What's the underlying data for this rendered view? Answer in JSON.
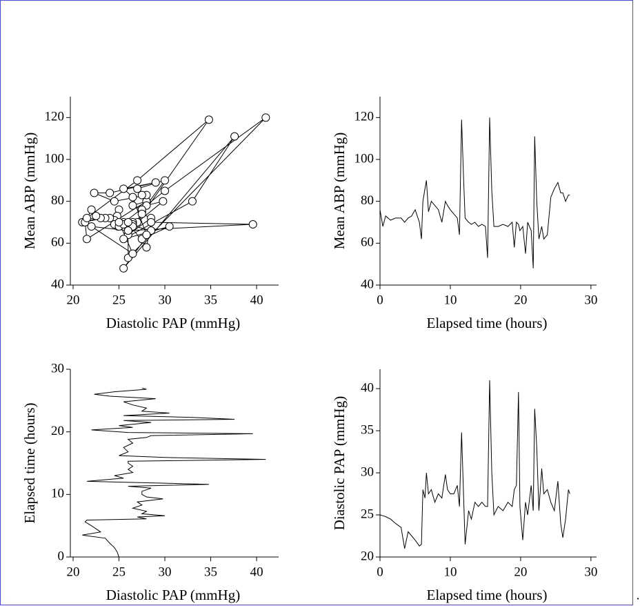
{
  "chart_data": [
    {
      "type": "scatter",
      "connect": true,
      "color": "#000000",
      "marker_fill": "#ffffff",
      "x_label": "Diastolic PAP (mmHg)",
      "y_label": "Mean ABP (mmHg)",
      "xlim": [
        19.7,
        42.4
      ],
      "xticks": [
        20,
        25,
        30,
        35,
        40
      ],
      "ylim": [
        40,
        130
      ],
      "yticks": [
        40,
        60,
        80,
        100,
        120
      ],
      "x": [
        25.0,
        24.9,
        24.8,
        24.5,
        24.0,
        23.5,
        21.0,
        23.0,
        22.5,
        22.0,
        21.3,
        21.5,
        28.0,
        27.0,
        30.0,
        27.5,
        28.0,
        26.5,
        27.5,
        27.0,
        29.8,
        28.0,
        27.5,
        27.5,
        28.5,
        26.0,
        34.8,
        27.0,
        21.5,
        25.5,
        24.5,
        26.5,
        26.0,
        26.5,
        26.0,
        26.0,
        41.0,
        30.0,
        25.0,
        26.0,
        25.5,
        26.5,
        26.0,
        28.0,
        28.5,
        39.6,
        26.0,
        22.0,
        26.5,
        25.0,
        28.5,
        25.5,
        37.6,
        33.0,
        25.5,
        30.5,
        27.5,
        28.0,
        26.5,
        25.5,
        29.0,
        24.0,
        22.3,
        24.5,
        28.0,
        27.5
      ],
      "values": [
        76,
        68,
        73,
        71,
        72,
        72,
        70,
        72,
        73,
        76,
        70,
        62,
        80,
        86,
        90,
        75,
        80,
        78,
        76,
        70,
        80,
        78,
        76,
        74,
        72,
        64,
        119,
        90,
        72,
        70,
        69,
        70,
        68,
        69,
        68,
        53,
        120,
        85,
        68,
        68,
        69,
        68,
        70,
        58,
        70,
        69,
        66,
        68,
        55,
        70,
        66,
        48,
        111,
        80,
        62,
        68,
        62,
        64,
        82,
        86,
        89,
        84,
        84,
        80,
        83,
        83
      ]
    },
    {
      "type": "line",
      "color": "#000000",
      "x_label": "Elapsed time (hours)",
      "y_label": "Mean ABP (mmHg)",
      "xlim": [
        0,
        30.8
      ],
      "xticks": [
        0,
        10,
        20,
        30
      ],
      "ylim": [
        40,
        130
      ],
      "yticks": [
        40,
        60,
        80,
        100,
        120
      ],
      "x": [
        0.0,
        0.4,
        0.8,
        1.5,
        2.2,
        3.0,
        3.5,
        4.0,
        4.5,
        5.0,
        5.6,
        5.9,
        6.1,
        6.4,
        6.6,
        6.9,
        7.3,
        7.8,
        8.3,
        8.8,
        9.3,
        9.6,
        10.0,
        10.5,
        11.0,
        11.3,
        11.6,
        11.9,
        12.1,
        12.6,
        13.0,
        13.5,
        14.0,
        14.5,
        15.0,
        15.3,
        15.6,
        15.9,
        16.2,
        16.8,
        17.5,
        18.2,
        18.8,
        19.1,
        19.4,
        19.7,
        19.9,
        20.3,
        20.7,
        21.0,
        21.5,
        21.8,
        22.0,
        22.3,
        22.6,
        23.0,
        23.3,
        23.8,
        24.3,
        24.8,
        25.3,
        25.7,
        26.0,
        26.4,
        26.8,
        27.0
      ],
      "values": [
        76,
        68,
        73,
        71,
        72,
        72,
        70,
        72,
        73,
        76,
        70,
        62,
        80,
        86,
        90,
        75,
        80,
        78,
        76,
        70,
        80,
        78,
        76,
        74,
        72,
        64,
        119,
        90,
        72,
        70,
        69,
        70,
        68,
        69,
        68,
        53,
        120,
        85,
        68,
        68,
        69,
        68,
        70,
        58,
        70,
        69,
        66,
        68,
        55,
        70,
        66,
        48,
        111,
        80,
        62,
        68,
        62,
        64,
        82,
        86,
        89,
        84,
        84,
        80,
        83,
        83
      ]
    },
    {
      "type": "line",
      "color": "#000000",
      "x_label": "Diastolic PAP (mmHg)",
      "y_label": "Elapsed time (hours)",
      "xlim": [
        19.7,
        42.4
      ],
      "xticks": [
        20,
        25,
        30,
        35,
        40
      ],
      "ylim": [
        0,
        30
      ],
      "yticks": [
        0,
        10,
        20,
        30
      ],
      "x": [
        25.0,
        24.9,
        24.8,
        24.5,
        24.0,
        23.5,
        21.0,
        23.0,
        22.5,
        22.0,
        21.3,
        21.5,
        28.0,
        27.0,
        30.0,
        27.5,
        28.0,
        26.5,
        27.5,
        27.0,
        29.8,
        28.0,
        27.5,
        27.5,
        28.5,
        26.0,
        34.8,
        27.0,
        21.5,
        25.5,
        24.5,
        26.5,
        26.0,
        26.5,
        26.0,
        26.0,
        41.0,
        30.0,
        25.0,
        26.0,
        25.5,
        26.5,
        26.0,
        28.0,
        28.5,
        39.6,
        26.0,
        22.0,
        26.5,
        25.0,
        28.5,
        25.5,
        37.6,
        33.0,
        25.5,
        30.5,
        27.5,
        28.0,
        26.5,
        25.5,
        29.0,
        24.0,
        22.3,
        24.5,
        28.0,
        27.5
      ],
      "values": [
        0.0,
        0.4,
        0.8,
        1.5,
        2.2,
        3.0,
        3.5,
        4.0,
        4.5,
        5.0,
        5.6,
        5.9,
        6.1,
        6.4,
        6.6,
        6.9,
        7.3,
        7.8,
        8.3,
        8.8,
        9.3,
        9.6,
        10.0,
        10.5,
        11.0,
        11.3,
        11.6,
        11.9,
        12.1,
        12.6,
        13.0,
        13.5,
        14.0,
        14.5,
        15.0,
        15.3,
        15.6,
        15.9,
        16.2,
        16.8,
        17.5,
        18.2,
        18.8,
        19.1,
        19.4,
        19.7,
        19.9,
        20.3,
        20.7,
        21.0,
        21.5,
        21.8,
        22.0,
        22.3,
        22.6,
        23.0,
        23.3,
        23.8,
        24.3,
        24.8,
        25.3,
        25.7,
        26.0,
        26.4,
        26.8,
        27.0
      ]
    },
    {
      "type": "line",
      "color": "#000000",
      "x_label": "Elapsed time (hours)",
      "y_label": "Diastolic PAP (mmHg)",
      "xlim": [
        0,
        30.8
      ],
      "xticks": [
        0,
        10,
        20,
        30
      ],
      "ylim": [
        20,
        42.3
      ],
      "yticks": [
        20,
        25,
        30,
        35,
        40
      ],
      "x": [
        0.0,
        0.4,
        0.8,
        1.5,
        2.2,
        3.0,
        3.5,
        4.0,
        4.5,
        5.0,
        5.6,
        5.9,
        6.1,
        6.4,
        6.6,
        6.9,
        7.3,
        7.8,
        8.3,
        8.8,
        9.3,
        9.6,
        10.0,
        10.5,
        11.0,
        11.3,
        11.6,
        11.9,
        12.1,
        12.6,
        13.0,
        13.5,
        14.0,
        14.5,
        15.0,
        15.3,
        15.6,
        15.9,
        16.2,
        16.8,
        17.5,
        18.2,
        18.8,
        19.1,
        19.4,
        19.7,
        19.9,
        20.3,
        20.7,
        21.0,
        21.5,
        21.8,
        22.0,
        22.3,
        22.6,
        23.0,
        23.3,
        23.8,
        24.3,
        24.8,
        25.3,
        25.7,
        26.0,
        26.4,
        26.8,
        27.0
      ],
      "values": [
        25.0,
        24.9,
        24.8,
        24.5,
        24.0,
        23.5,
        21.0,
        23.0,
        22.5,
        22.0,
        21.3,
        21.5,
        28.0,
        27.0,
        30.0,
        27.5,
        28.0,
        26.5,
        27.5,
        27.0,
        29.8,
        28.0,
        27.5,
        27.5,
        28.5,
        26.0,
        34.8,
        27.0,
        21.5,
        25.5,
        24.5,
        26.5,
        26.0,
        26.5,
        26.0,
        26.0,
        41.0,
        30.0,
        25.0,
        26.0,
        25.5,
        26.5,
        26.0,
        28.0,
        28.5,
        39.6,
        26.0,
        22.0,
        26.5,
        25.0,
        28.5,
        25.5,
        37.6,
        33.0,
        25.5,
        30.5,
        27.5,
        28.0,
        26.5,
        25.5,
        29.0,
        24.0,
        22.3,
        24.5,
        28.0,
        27.5
      ]
    }
  ],
  "footer_text": "."
}
